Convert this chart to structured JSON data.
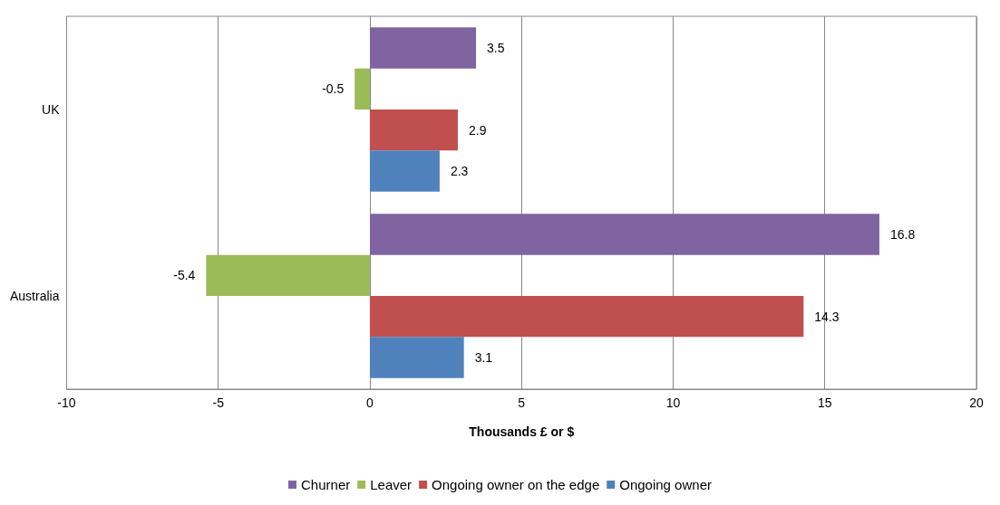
{
  "chart_data": {
    "type": "bar",
    "orientation": "horizontal",
    "xlabel": "Thousands £ or $",
    "categories": [
      "UK",
      "Australia"
    ],
    "series": [
      {
        "name": "Churner",
        "color": "#8064a2",
        "values": [
          3.5,
          16.8
        ]
      },
      {
        "name": "Leaver",
        "color": "#9bbb59",
        "values": [
          -0.5,
          -5.4
        ]
      },
      {
        "name": "Ongoing owner on the edge",
        "color": "#c0504d",
        "values": [
          2.9,
          14.3
        ]
      },
      {
        "name": "Ongoing owner",
        "color": "#4f81bd",
        "values": [
          2.3,
          3.1
        ]
      }
    ],
    "xlim": [
      -10,
      20
    ],
    "xticks": [
      -10,
      -5,
      0,
      5,
      10,
      15,
      20
    ],
    "grid": "x",
    "legend": "bottom",
    "data_labels": true
  }
}
